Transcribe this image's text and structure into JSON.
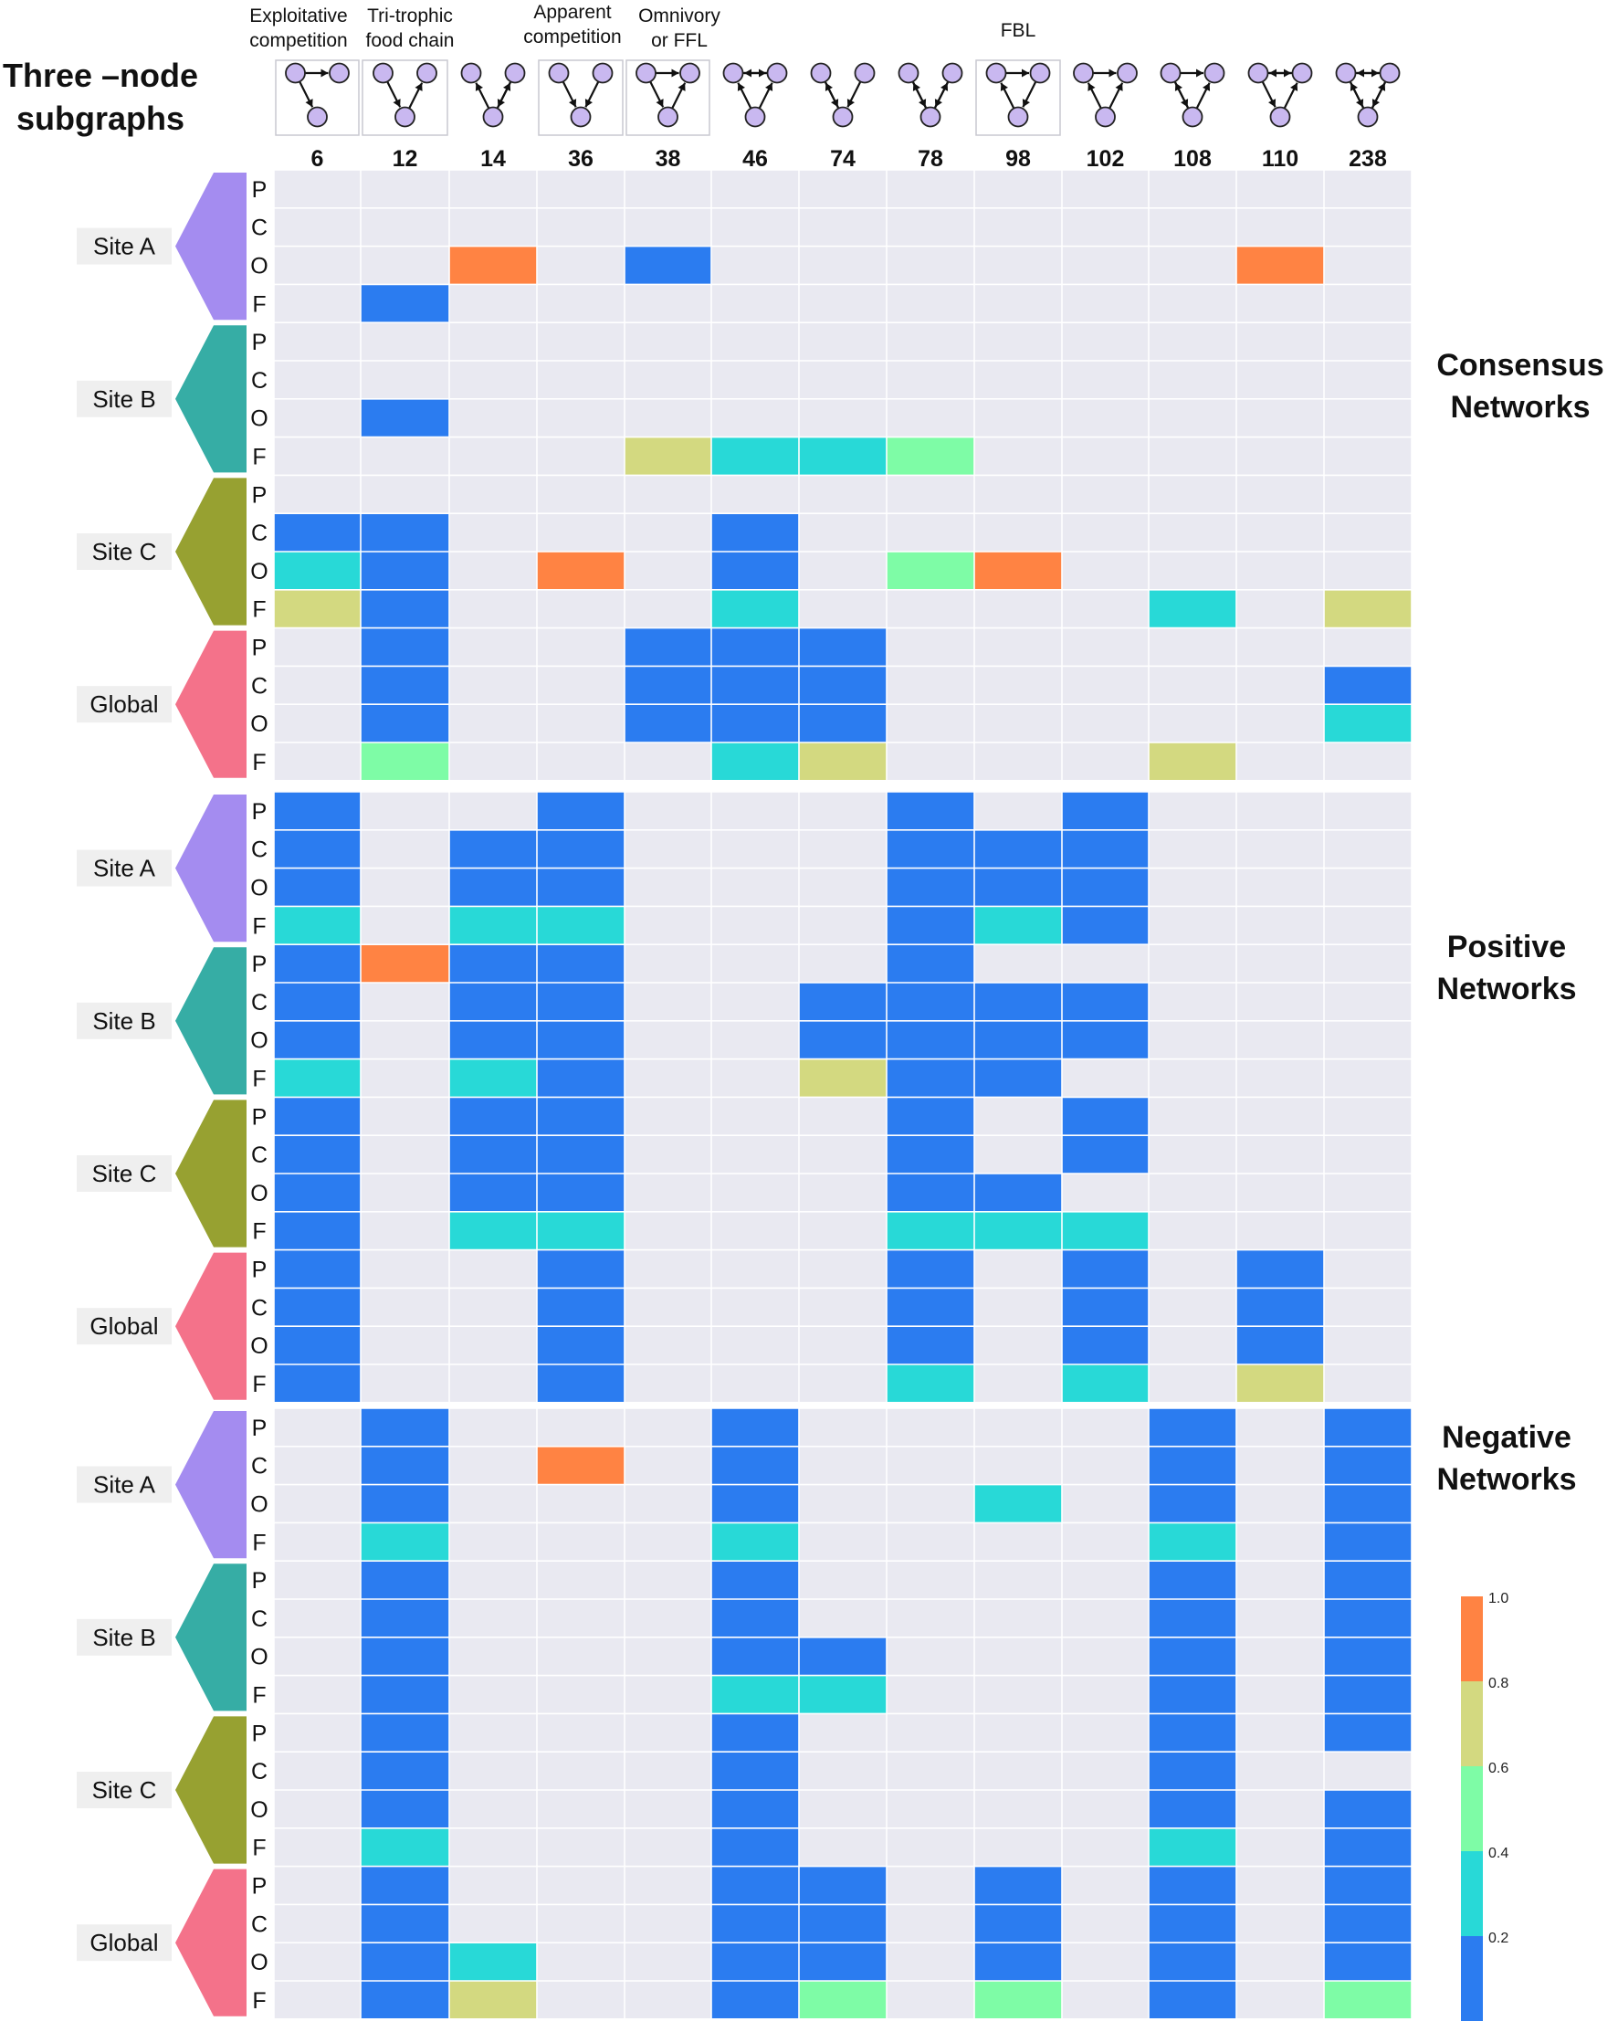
{
  "header": {
    "title_line1": "Three –node",
    "title_line2": "subgraphs"
  },
  "motif_labels": [
    {
      "label": "Exploitative competition",
      "line1": "Exploitative",
      "line2": "competition"
    },
    {
      "label": "Tri-trophic food chain",
      "line1": "Tri-trophic",
      "line2": "food chain"
    },
    {
      "label": "Apparent competition",
      "line1": "Apparent",
      "line2": "competition"
    },
    {
      "label": "Omnivory or FFL",
      "line1": "Omnivory",
      "line2": "or FFL"
    },
    {
      "label": "FBL",
      "line1": "FBL",
      "line2": ""
    }
  ],
  "section_titles": [
    {
      "line1": "Consensus",
      "line2": "Networks"
    },
    {
      "line1": "Positive",
      "line2": "Networks"
    },
    {
      "line1": "Negative",
      "line2": "Networks"
    }
  ],
  "site_colors": {
    "Site A": "#a48cf0",
    "Site B": "#36ada5",
    "Site C": "#97a131",
    "Global": "#f4728a"
  },
  "colors": {
    "empty_cell": "#e9e9f1",
    "grid_line": "#ffffff",
    "band_0_0.2": "#2b7cf0",
    "band_0.2_0.4": "#28d9d7",
    "band_0.4_0.6": "#7efca6",
    "band_0.6_0.8": "#d3d980",
    "band_0.8_1.0": "#ff8343",
    "node_fill": "#c9b8f0"
  },
  "chart_data": {
    "type": "heatmap",
    "title": "Three –node subgraphs",
    "x_categories": [
      "6",
      "12",
      "14",
      "36",
      "38",
      "46",
      "74",
      "78",
      "98",
      "102",
      "108",
      "110",
      "238"
    ],
    "row_groups": [
      "Site A",
      "Site B",
      "Site C",
      "Global"
    ],
    "row_letters": [
      "P",
      "C",
      "O",
      "F"
    ],
    "value_encoding": "color bands; 0 = no cell colour (empty)",
    "colorbar": {
      "ticks": [
        "1.0",
        "0.8",
        "0.6",
        "0.4",
        "0.2"
      ],
      "bands": [
        {
          "range": [
            0,
            0.2
          ],
          "color": "#2b7cf0"
        },
        {
          "range": [
            0.2,
            0.4
          ],
          "color": "#28d9d7"
        },
        {
          "range": [
            0.4,
            0.6
          ],
          "color": "#7efca6"
        },
        {
          "range": [
            0.6,
            0.8
          ],
          "color": "#d3d980"
        },
        {
          "range": [
            0.8,
            1.0
          ],
          "color": "#ff8343"
        }
      ]
    },
    "sections": [
      {
        "name": "Consensus Networks",
        "matrix": [
          [
            0,
            0,
            0,
            0,
            0,
            0,
            0,
            0,
            0,
            0,
            0,
            0,
            0
          ],
          [
            0,
            0,
            0,
            0,
            0,
            0,
            0,
            0,
            0,
            0,
            0,
            0,
            0
          ],
          [
            0,
            0,
            0.9,
            0,
            0.1,
            0,
            0,
            0,
            0,
            0,
            0,
            0.9,
            0
          ],
          [
            0,
            0.1,
            0,
            0,
            0,
            0,
            0,
            0,
            0,
            0,
            0,
            0,
            0
          ],
          [
            0,
            0,
            0,
            0,
            0,
            0,
            0,
            0,
            0,
            0,
            0,
            0,
            0
          ],
          [
            0,
            0,
            0,
            0,
            0,
            0,
            0,
            0,
            0,
            0,
            0,
            0,
            0
          ],
          [
            0,
            0.1,
            0,
            0,
            0,
            0,
            0,
            0,
            0,
            0,
            0,
            0,
            0
          ],
          [
            0,
            0,
            0,
            0,
            0.7,
            0.3,
            0.3,
            0.5,
            0,
            0,
            0,
            0,
            0
          ],
          [
            0,
            0,
            0,
            0,
            0,
            0,
            0,
            0,
            0,
            0,
            0,
            0,
            0
          ],
          [
            0.1,
            0.1,
            0,
            0,
            0,
            0.1,
            0,
            0,
            0,
            0,
            0,
            0,
            0
          ],
          [
            0.3,
            0.1,
            0,
            0.9,
            0,
            0.1,
            0,
            0.5,
            0.9,
            0,
            0,
            0,
            0
          ],
          [
            0.7,
            0.1,
            0,
            0,
            0,
            0.3,
            0,
            0,
            0,
            0,
            0.3,
            0,
            0.7
          ],
          [
            0,
            0.1,
            0,
            0,
            0.1,
            0.1,
            0.1,
            0,
            0,
            0,
            0,
            0,
            0
          ],
          [
            0,
            0.1,
            0,
            0,
            0.1,
            0.1,
            0.1,
            0,
            0,
            0,
            0,
            0,
            0.1
          ],
          [
            0,
            0.1,
            0,
            0,
            0.1,
            0.1,
            0.1,
            0,
            0,
            0,
            0,
            0,
            0.3
          ],
          [
            0,
            0.5,
            0,
            0,
            0,
            0.3,
            0.7,
            0,
            0,
            0,
            0.7,
            0,
            0
          ]
        ]
      },
      {
        "name": "Positive Networks",
        "matrix": [
          [
            0.1,
            0,
            0,
            0.1,
            0,
            0,
            0,
            0.1,
            0,
            0.1,
            0,
            0,
            0
          ],
          [
            0.1,
            0,
            0.1,
            0.1,
            0,
            0,
            0,
            0.1,
            0.1,
            0.1,
            0,
            0,
            0
          ],
          [
            0.1,
            0,
            0.1,
            0.1,
            0,
            0,
            0,
            0.1,
            0.1,
            0.1,
            0,
            0,
            0
          ],
          [
            0.3,
            0,
            0.3,
            0.3,
            0,
            0,
            0,
            0.1,
            0.3,
            0.1,
            0,
            0,
            0
          ],
          [
            0.1,
            0.9,
            0.1,
            0.1,
            0,
            0,
            0,
            0.1,
            0,
            0,
            0,
            0,
            0
          ],
          [
            0.1,
            0,
            0.1,
            0.1,
            0,
            0,
            0.1,
            0.1,
            0.1,
            0.1,
            0,
            0,
            0
          ],
          [
            0.1,
            0,
            0.1,
            0.1,
            0,
            0,
            0.1,
            0.1,
            0.1,
            0.1,
            0,
            0,
            0
          ],
          [
            0.3,
            0,
            0.3,
            0.1,
            0,
            0,
            0.7,
            0.1,
            0.1,
            0,
            0,
            0,
            0
          ],
          [
            0.1,
            0,
            0.1,
            0.1,
            0,
            0,
            0,
            0.1,
            0,
            0.1,
            0,
            0,
            0
          ],
          [
            0.1,
            0,
            0.1,
            0.1,
            0,
            0,
            0,
            0.1,
            0,
            0.1,
            0,
            0,
            0
          ],
          [
            0.1,
            0,
            0.1,
            0.1,
            0,
            0,
            0,
            0.1,
            0.1,
            0,
            0,
            0,
            0
          ],
          [
            0.1,
            0,
            0.3,
            0.3,
            0,
            0,
            0,
            0.3,
            0.3,
            0.3,
            0,
            0,
            0
          ],
          [
            0.1,
            0,
            0,
            0.1,
            0,
            0,
            0,
            0.1,
            0,
            0.1,
            0,
            0.1,
            0
          ],
          [
            0.1,
            0,
            0,
            0.1,
            0,
            0,
            0,
            0.1,
            0,
            0.1,
            0,
            0.1,
            0
          ],
          [
            0.1,
            0,
            0,
            0.1,
            0,
            0,
            0,
            0.1,
            0,
            0.1,
            0,
            0.1,
            0
          ],
          [
            0.1,
            0,
            0,
            0.1,
            0,
            0,
            0,
            0.3,
            0,
            0.3,
            0,
            0.7,
            0
          ]
        ]
      },
      {
        "name": "Negative Networks",
        "matrix": [
          [
            0,
            0.1,
            0,
            0,
            0,
            0.1,
            0,
            0,
            0,
            0,
            0.1,
            0,
            0.1
          ],
          [
            0,
            0.1,
            0,
            0.9,
            0,
            0.1,
            0,
            0,
            0,
            0,
            0.1,
            0,
            0.1
          ],
          [
            0,
            0.1,
            0,
            0,
            0,
            0.1,
            0,
            0,
            0.3,
            0,
            0.1,
            0,
            0.1
          ],
          [
            0,
            0.3,
            0,
            0,
            0,
            0.3,
            0,
            0,
            0,
            0,
            0.3,
            0,
            0.1
          ],
          [
            0,
            0.1,
            0,
            0,
            0,
            0.1,
            0,
            0,
            0,
            0,
            0.1,
            0,
            0.1
          ],
          [
            0,
            0.1,
            0,
            0,
            0,
            0.1,
            0,
            0,
            0,
            0,
            0.1,
            0,
            0.1
          ],
          [
            0,
            0.1,
            0,
            0,
            0,
            0.1,
            0.1,
            0,
            0,
            0,
            0.1,
            0,
            0.1
          ],
          [
            0,
            0.1,
            0,
            0,
            0,
            0.3,
            0.3,
            0,
            0,
            0,
            0.1,
            0,
            0.1
          ],
          [
            0,
            0.1,
            0,
            0,
            0,
            0.1,
            0,
            0,
            0,
            0,
            0.1,
            0,
            0.1
          ],
          [
            0,
            0.1,
            0,
            0,
            0,
            0.1,
            0,
            0,
            0,
            0,
            0.1,
            0,
            0
          ],
          [
            0,
            0.1,
            0,
            0,
            0,
            0.1,
            0,
            0,
            0,
            0,
            0.1,
            0,
            0.1
          ],
          [
            0,
            0.3,
            0,
            0,
            0,
            0.1,
            0,
            0,
            0,
            0,
            0.3,
            0,
            0.1
          ],
          [
            0,
            0.1,
            0,
            0,
            0,
            0.1,
            0.1,
            0,
            0.1,
            0,
            0.1,
            0,
            0.1
          ],
          [
            0,
            0.1,
            0,
            0,
            0,
            0.1,
            0.1,
            0,
            0.1,
            0,
            0.1,
            0,
            0.1
          ],
          [
            0,
            0.1,
            0.3,
            0,
            0,
            0.1,
            0.1,
            0,
            0.1,
            0,
            0.1,
            0,
            0.1
          ],
          [
            0,
            0.1,
            0.7,
            0,
            0,
            0.1,
            0.5,
            0,
            0.5,
            0,
            0.1,
            0,
            0.5
          ]
        ]
      }
    ]
  }
}
